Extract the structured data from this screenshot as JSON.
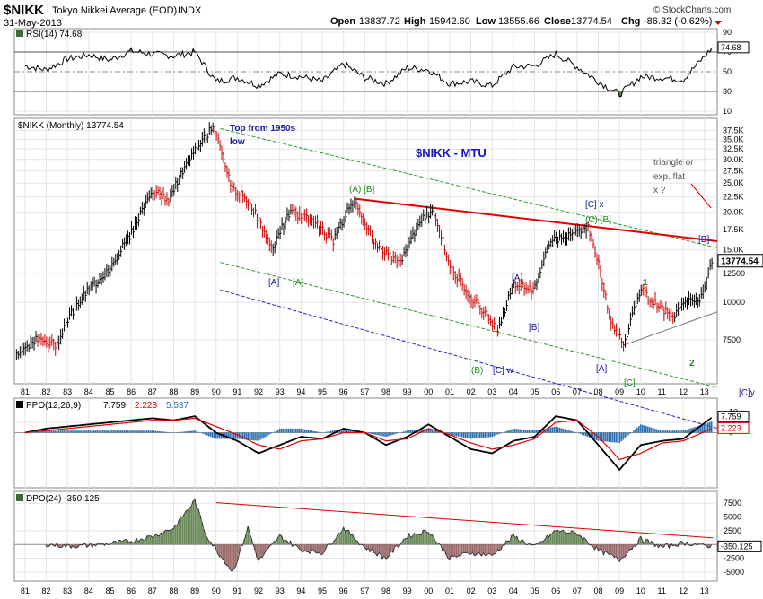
{
  "header": {
    "symbol": "$NIKK",
    "name": "Tokyo Nikkei Average (EOD)",
    "type": "INDX",
    "date": "31-May-2013",
    "brand": "© StockCharts.com",
    "open_label": "Open",
    "open": "13837.72",
    "high_label": "High",
    "high": "15942.60",
    "low_label": "Low",
    "low": "13555.66",
    "close_label": "Close",
    "close": "13774.54",
    "chg_label": "Chg",
    "chg": "-86.32 (-0.62%)"
  },
  "colors": {
    "price_bar": "#000000",
    "down_bar": "#cc0000",
    "rsi_fill": "#5a7a4a",
    "trend_red": "#e00000",
    "channel_green": "#2a9a2a",
    "channel_blue": "#2222dd",
    "wave_blue": "#1515a0",
    "wave_green": "#1a8a1a",
    "histogram": "#2b6fb0",
    "dpo_pos": "#6a8a5a",
    "dpo_neg": "#9a6a6a"
  },
  "chart_data": [
    {
      "type": "line",
      "panel": "rsi",
      "title": "RSI(14) 74.68",
      "current_label": "74.68",
      "current_value": 74.68,
      "ylim": [
        10,
        90
      ],
      "yticks": [
        90,
        70,
        50,
        30,
        10
      ],
      "overbought": 70,
      "oversold": 30,
      "x": [
        1981,
        1982,
        1983,
        1984,
        1985,
        1986,
        1987,
        1988,
        1989,
        1990,
        1991,
        1992,
        1993,
        1994,
        1995,
        1996,
        1997,
        1998,
        1999,
        2000,
        2001,
        2002,
        2003,
        2004,
        2005,
        2006,
        2007,
        2008,
        2009,
        2010,
        2011,
        2012,
        2013.4
      ],
      "values": [
        56,
        52,
        63,
        67,
        62,
        71,
        68,
        66,
        70,
        40,
        44,
        36,
        48,
        45,
        40,
        58,
        44,
        38,
        54,
        52,
        38,
        40,
        36,
        55,
        56,
        68,
        55,
        40,
        27,
        45,
        44,
        42,
        75
      ]
    },
    {
      "type": "line",
      "panel": "price",
      "title": "$NIKK (Monthly) 13774.54",
      "last_label": "13774.54",
      "last_value": 13774.54,
      "ylim": [
        5500,
        40000
      ],
      "yscale": "log",
      "yticks": [
        37500,
        35000,
        32500,
        30000,
        27500,
        25000,
        22500,
        20000,
        17500,
        15000,
        12500,
        10000,
        7500
      ],
      "ytick_labels": [
        "37.5K",
        "35.0K",
        "32.5K",
        "30.0K",
        "27.5K",
        "25.0K",
        "22.5K",
        "20.0K",
        "17.5K",
        "15.0K",
        "12500",
        "10000",
        "7500"
      ],
      "xlim": [
        1980.5,
        2013.6
      ],
      "xticks": [
        1981,
        1982,
        1983,
        1984,
        1985,
        1986,
        1987,
        1988,
        1989,
        1990,
        1991,
        1992,
        1993,
        1994,
        1995,
        1996,
        1997,
        1998,
        1999,
        2000,
        2001,
        2002,
        2003,
        2004,
        2005,
        2006,
        2007,
        2008,
        2009,
        2010,
        2011,
        2012,
        2013
      ],
      "xtick_labels": [
        "81",
        "82",
        "83",
        "84",
        "85",
        "86",
        "87",
        "88",
        "89",
        "90",
        "91",
        "92",
        "93",
        "94",
        "95",
        "96",
        "97",
        "98",
        "99",
        "00",
        "01",
        "02",
        "03",
        "04",
        "05",
        "06",
        "07",
        "08",
        "09",
        "10",
        "11",
        "12",
        "13"
      ],
      "x": [
        1980.6,
        1981.5,
        1982.5,
        1983,
        1984,
        1985,
        1986,
        1987,
        1987.8,
        1988.5,
        1989.9,
        1990.7,
        1991.5,
        1992.6,
        1993.5,
        1994.5,
        1995.5,
        1996.5,
        1997.5,
        1998.7,
        1999.5,
        2000.2,
        2001,
        2002,
        2002.5,
        2003.3,
        2004,
        2005,
        2005.7,
        2006.5,
        2007.5,
        2008,
        2008.5,
        2009.2,
        2010,
        2011,
        2011.5,
        2012.2,
        2012.9,
        2013.4
      ],
      "values": [
        6800,
        7500,
        7200,
        8800,
        11000,
        13000,
        17000,
        23500,
        22000,
        28000,
        38900,
        24000,
        22000,
        15000,
        20000,
        19000,
        16000,
        22000,
        15500,
        13500,
        18000,
        20500,
        13000,
        10500,
        9500,
        8000,
        11500,
        11000,
        16000,
        16500,
        18000,
        13500,
        9000,
        7100,
        11000,
        9500,
        9000,
        10000,
        10500,
        13774
      ]
    },
    {
      "type": "line",
      "panel": "ppo",
      "title": "PPO(12,26,9)",
      "ppo_label": "7.759",
      "signal_label": "2.223",
      "hist_label": "5.537",
      "ppo_value": 7.759,
      "signal_value": 2.223,
      "hist_value": 5.537,
      "ylim": [
        -25,
        15
      ],
      "ytick_labels": [
        "10",
        "5",
        "0"
      ],
      "x": [
        1981,
        1982,
        1983,
        1984,
        1985,
        1986,
        1987,
        1988,
        1989,
        1990,
        1991,
        1992,
        1993,
        1994,
        1995,
        1996,
        1997,
        1998,
        1999,
        2000,
        2001,
        2002,
        2003,
        2004,
        2005,
        2006,
        2007,
        2008,
        2009,
        2010,
        2011,
        2012,
        2013.4
      ],
      "series": [
        {
          "name": "PPO",
          "color": "#000000",
          "values": [
            0,
            2,
            3,
            4,
            5,
            6,
            7,
            6,
            8,
            0,
            -4,
            -10,
            -6,
            -2,
            -3,
            2,
            0,
            -6,
            -2,
            4,
            -2,
            -8,
            -10,
            -4,
            -2,
            8,
            6,
            -6,
            -18,
            -6,
            -4,
            -3,
            7.759
          ]
        },
        {
          "name": "Signal",
          "color": "#e00000",
          "values": [
            0,
            1,
            2,
            3,
            4,
            5,
            6,
            6,
            7,
            3,
            -1,
            -6,
            -8,
            -4,
            -3,
            0,
            0,
            -4,
            -3,
            2,
            -1,
            -5,
            -8,
            -6,
            -3,
            5,
            6,
            -2,
            -13,
            -10,
            -5,
            -4,
            2.223
          ]
        }
      ]
    },
    {
      "type": "line",
      "panel": "dpo",
      "title": "DPO(24) -350.125",
      "current_label": "-350.125",
      "current_value": -350.125,
      "ylim": [
        -6000,
        9000
      ],
      "ytick_labels": [
        "7500",
        "5000",
        "2500",
        "0",
        "-2500",
        "-5000"
      ],
      "x": [
        1982,
        1983,
        1984,
        1985,
        1986,
        1987,
        1988,
        1989,
        1989.5,
        1990,
        1990.8,
        1991.5,
        1992,
        1993,
        1994,
        1995,
        1996,
        1997,
        1998,
        1999,
        2000,
        2001,
        2002,
        2003,
        2004,
        2005,
        2006,
        2007,
        2008,
        2009,
        2010,
        2011,
        2012,
        2013.4
      ],
      "values": [
        0,
        -300,
        -200,
        200,
        600,
        1500,
        3000,
        8000,
        2000,
        -1000,
        -5000,
        3000,
        -3000,
        1500,
        -1000,
        -1500,
        3000,
        -500,
        -2500,
        1500,
        2500,
        -2500,
        -1500,
        -2000,
        1500,
        -500,
        2500,
        2000,
        -1000,
        -2800,
        1000,
        -500,
        300,
        -350
      ]
    }
  ],
  "annotations": {
    "title": "$NIKK - MTU",
    "top": "Top from 1950s",
    "top2": "low",
    "triangle1": "triangle or",
    "triangle2": "exp. flat",
    "triangle3": "x ?",
    "w_a_b": "(A) [B]",
    "w_cx": "[C] x",
    "w_c_b": "(C) [B]",
    "w_A_93": "[A]",
    "w_A_93g": "[A]",
    "w_A_04": "[A]",
    "w_B_05": "[B]",
    "w_B_02": "(B)",
    "w_Cw": "[C] w",
    "w_A_08": "[A]",
    "w_C_09": "[C]",
    "w_B_13": "[B]",
    "w_1": "1",
    "w_2": "2",
    "w_Cy": "[C]y"
  }
}
